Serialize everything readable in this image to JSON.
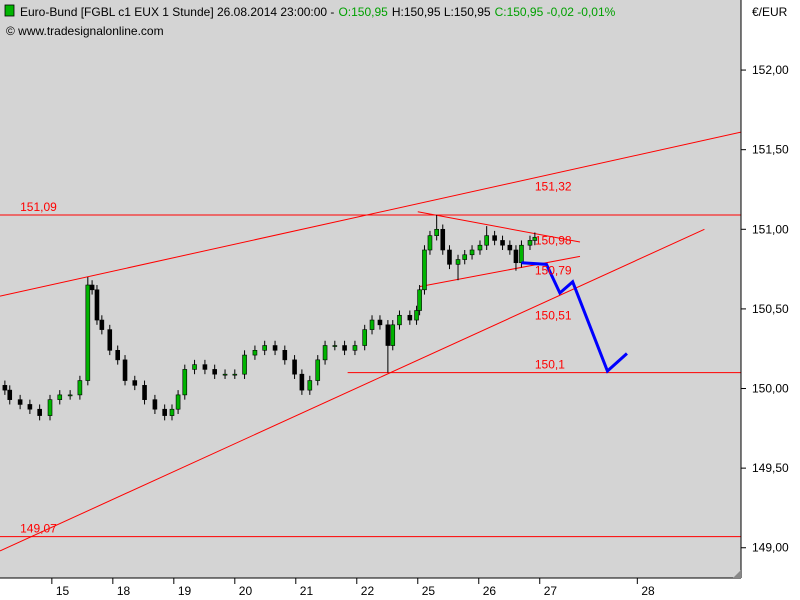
{
  "chart_data": {
    "type": "candlestick",
    "title": [
      "Euro-Bund [FGBL c1 EUX  1 Stunde] 26.08.2014 23:00:00  -",
      "O:150,95",
      "H:150,95 L:150,95",
      "C:150,95 -0,02 -0,01%"
    ],
    "title_colors": [
      "#000000",
      "#00a000",
      "#000000",
      "#00a000"
    ],
    "subtitle": "© www.tradesignalonline.com",
    "y_axis_label": "€/EUR",
    "x": [
      0.23,
      0.31,
      0.48,
      0.64,
      0.8,
      0.97,
      1.13,
      1.3,
      1.46,
      1.59,
      1.66,
      1.74,
      1.82,
      1.95,
      2.08,
      2.2,
      2.36,
      2.52,
      2.69,
      2.85,
      2.97,
      3.07,
      3.18,
      3.34,
      3.51,
      3.67,
      3.84,
      4.0,
      4.16,
      4.33,
      4.49,
      4.66,
      4.82,
      4.98,
      5.1,
      5.23,
      5.36,
      5.48,
      5.64,
      5.8,
      5.97,
      6.13,
      6.25,
      6.38,
      6.51,
      6.59,
      6.7,
      6.87,
      6.98,
      7.03,
      7.11,
      7.2,
      7.31,
      7.41,
      7.52,
      7.66,
      7.77,
      7.89,
      8.02,
      8.13,
      8.26,
      8.39,
      8.51,
      8.61,
      8.7,
      8.84,
      8.92
    ],
    "open": [
      150.02,
      149.99,
      149.93,
      149.9,
      149.87,
      149.83,
      149.93,
      149.96,
      149.96,
      150.05,
      150.65,
      150.62,
      150.43,
      150.37,
      150.24,
      150.18,
      150.05,
      150.02,
      149.93,
      149.87,
      149.83,
      149.87,
      149.96,
      150.12,
      150.15,
      150.12,
      150.09,
      150.09,
      150.09,
      150.21,
      150.24,
      150.27,
      150.24,
      150.18,
      150.09,
      149.99,
      150.05,
      150.18,
      150.27,
      150.27,
      150.24,
      150.27,
      150.37,
      150.43,
      150.4,
      150.27,
      150.4,
      150.46,
      150.43,
      150.49,
      150.62,
      150.87,
      150.96,
      151.0,
      150.87,
      150.78,
      150.81,
      150.84,
      150.87,
      150.9,
      150.96,
      150.93,
      150.9,
      150.87,
      150.79,
      150.9,
      150.93
    ],
    "high": [
      150.05,
      150.02,
      149.96,
      149.93,
      149.9,
      149.96,
      149.99,
      149.99,
      150.08,
      150.7,
      150.68,
      150.65,
      150.46,
      150.4,
      150.27,
      150.21,
      150.08,
      150.05,
      149.96,
      149.9,
      149.9,
      149.99,
      150.15,
      150.18,
      150.18,
      150.15,
      150.12,
      150.12,
      150.24,
      150.27,
      150.3,
      150.3,
      150.27,
      150.21,
      150.12,
      150.08,
      150.21,
      150.3,
      150.3,
      150.3,
      150.3,
      150.4,
      150.46,
      150.46,
      150.43,
      150.43,
      150.49,
      150.49,
      150.52,
      150.65,
      150.9,
      150.99,
      151.09,
      151.03,
      150.9,
      150.84,
      150.87,
      150.9,
      150.93,
      151.02,
      150.99,
      150.96,
      150.93,
      150.9,
      150.93,
      150.96,
      150.98
    ],
    "low": [
      149.96,
      149.9,
      149.87,
      149.84,
      149.8,
      149.8,
      149.9,
      149.93,
      149.93,
      150.02,
      150.59,
      150.4,
      150.34,
      150.21,
      150.15,
      150.02,
      149.99,
      149.9,
      149.84,
      149.8,
      149.8,
      149.84,
      149.93,
      150.09,
      150.09,
      150.06,
      150.06,
      150.06,
      150.06,
      150.18,
      150.21,
      150.21,
      150.15,
      150.06,
      149.96,
      149.96,
      150.02,
      150.15,
      150.24,
      150.21,
      150.21,
      150.24,
      150.34,
      150.37,
      150.1,
      150.24,
      150.37,
      150.4,
      150.4,
      150.46,
      150.59,
      150.84,
      150.93,
      150.84,
      150.75,
      150.68,
      150.78,
      150.81,
      150.84,
      150.87,
      150.9,
      150.87,
      150.84,
      150.74,
      150.76,
      150.87,
      150.9
    ],
    "close": [
      149.99,
      149.93,
      149.9,
      149.87,
      149.83,
      149.93,
      149.96,
      149.96,
      150.05,
      150.65,
      150.62,
      150.43,
      150.37,
      150.24,
      150.18,
      150.05,
      150.02,
      149.93,
      149.87,
      149.83,
      149.87,
      149.96,
      150.12,
      150.15,
      150.12,
      150.09,
      150.09,
      150.09,
      150.21,
      150.24,
      150.27,
      150.24,
      150.18,
      150.09,
      149.99,
      150.05,
      150.18,
      150.27,
      150.27,
      150.24,
      150.27,
      150.37,
      150.43,
      150.4,
      150.27,
      150.4,
      150.46,
      150.43,
      150.49,
      150.62,
      150.87,
      150.96,
      151.0,
      150.87,
      150.78,
      150.81,
      150.84,
      150.87,
      150.9,
      150.96,
      150.93,
      150.9,
      150.87,
      150.79,
      150.9,
      150.93,
      150.95
    ],
    "up_color": "#00b400",
    "down_color": "#000000",
    "xlim": [
      0.15,
      12.3
    ],
    "xticks": [
      {
        "value": 1,
        "label": "15"
      },
      {
        "value": 2,
        "label": "18"
      },
      {
        "value": 3,
        "label": "19"
      },
      {
        "value": 4,
        "label": "20"
      },
      {
        "value": 5,
        "label": "21"
      },
      {
        "value": 6,
        "label": "22"
      },
      {
        "value": 7,
        "label": "25"
      },
      {
        "value": 8,
        "label": "26"
      },
      {
        "value": 9,
        "label": "27"
      },
      {
        "value": 10.6,
        "label": "28"
      }
    ],
    "ylim": [
      148.81,
      152.44
    ],
    "yticks": [
      {
        "value": 149,
        "label": "149,00"
      },
      {
        "value": 149.5,
        "label": "149,50"
      },
      {
        "value": 150,
        "label": "150,00"
      },
      {
        "value": 150.5,
        "label": "150,50"
      },
      {
        "value": 151,
        "label": "151,00"
      },
      {
        "value": 151.5,
        "label": "151,50"
      },
      {
        "value": 152,
        "label": "152,00"
      }
    ],
    "annotation_color": "#ff0000",
    "levels": [
      {
        "value": 151.09,
        "label": "151,09",
        "from": 0.15,
        "label_x": 0.48
      },
      {
        "value": 149.07,
        "label": "149,07",
        "from": 0.15,
        "label_x": 0.48
      },
      {
        "value": 150.1,
        "label": "150,1",
        "from": 5.85,
        "label_x": 8.92
      }
    ],
    "trendlines": [
      {
        "x": [
          0.15,
          12.3
        ],
        "y": [
          150.58,
          151.61
        ],
        "label": "151,32",
        "label_x": 8.92,
        "label_value": 151.32
      },
      {
        "x": [
          7.0,
          9.66
        ],
        "y": [
          151.11,
          150.92
        ],
        "label": "150,98",
        "label_x": 8.92,
        "label_value": 150.98
      },
      {
        "x": [
          7.03,
          9.66
        ],
        "y": [
          150.64,
          150.83
        ],
        "label": "150,79",
        "label_x": 8.92,
        "label_value": 150.79
      },
      {
        "x": [
          0.15,
          11.7
        ],
        "y": [
          148.98,
          151.0
        ],
        "label": "150,51",
        "label_x": 8.92,
        "label_value": 150.51
      }
    ],
    "projection": {
      "x": [
        8.7,
        9.11,
        9.33,
        9.54,
        10.11,
        10.43
      ],
      "y": [
        150.79,
        150.78,
        150.6,
        150.67,
        150.11,
        150.22
      ],
      "color": "#0000ff"
    }
  }
}
